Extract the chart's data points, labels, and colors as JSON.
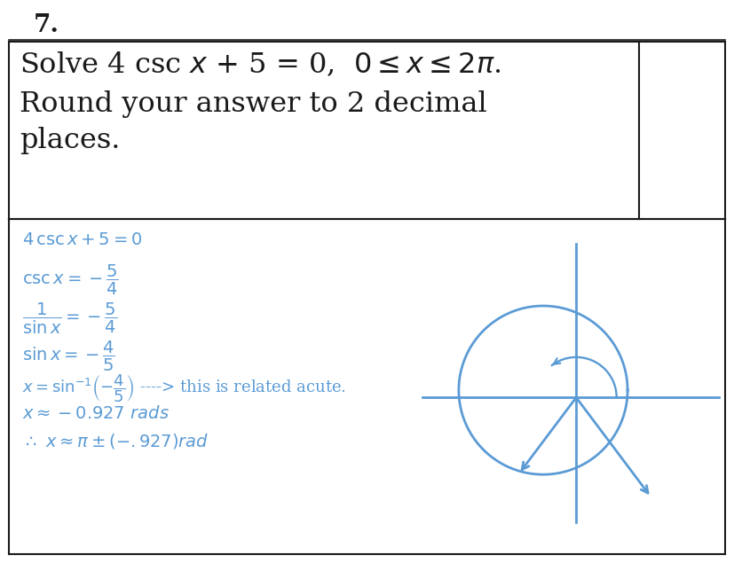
{
  "bg_color": "#ffffff",
  "text_color": "#5b9bd5",
  "dark_color": "#1a1a1a",
  "number": "7.",
  "circle_color": "#5b9bd5",
  "figsize": [
    8.27,
    6.35
  ],
  "dpi": 100,
  "steps": [
    "4 csc $x$ + 5 = 0",
    "csc $x$ = $-\\dfrac{5}{4}$",
    "$\\dfrac{1}{\\sin x}$ = $-\\dfrac{5}{4}$",
    "sin $x$ = $-\\dfrac{4}{5}$",
    "$x = \\sin^{-1}\\!\\left(-\\dfrac{4}{5}\\right)$ ----> this is related acute.",
    "$x \\approx -0.927\\;rads$",
    "$\\therefore\\, x \\approx \\pi \\pm (-.927)rad$"
  ]
}
